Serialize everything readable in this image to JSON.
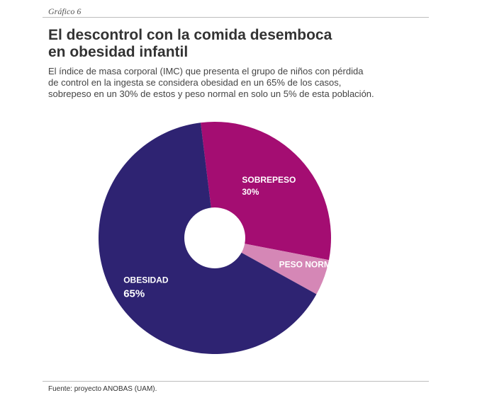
{
  "header": {
    "graphic_label": "Gráfico 6",
    "title_line1": "El descontrol con la comida desemboca",
    "title_line2": "en obesidad infantil",
    "subtitle_line1": "El índice de masa corporal (IMC) que presenta el grupo de niños con pérdida",
    "subtitle_line2": "de control en la ingesta se considera obesidad en un 65% de los casos,",
    "subtitle_line3": "sobrepeso en un 30% de estos y peso normal en solo un 5% de esta población."
  },
  "footer": {
    "source": "Fuente: proyecto ANOBAS (UAM)."
  },
  "colors": {
    "obesidad": "#2e2372",
    "sobrepeso": "#a40d72",
    "peso_normal": "#d587b6"
  },
  "chart_data": {
    "type": "pie",
    "style": "donut",
    "title": "El descontrol con la comida desemboca en obesidad infantil",
    "slices": [
      {
        "key": "sobrepeso",
        "label": "SOBREPESO",
        "value": 30,
        "value_label": "30%"
      },
      {
        "key": "peso_normal",
        "label": "PESO NORMAL",
        "value": 5,
        "value_label": "5%"
      },
      {
        "key": "obesidad",
        "label": "OBESIDAD",
        "value": 65,
        "value_label": "65%"
      }
    ],
    "units": "%",
    "legend": "none (labels on slices)"
  }
}
